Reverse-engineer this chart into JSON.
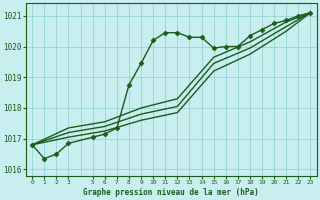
{
  "title": "Graphe pression niveau de la mer (hPa)",
  "bg_color": "#c8eef0",
  "grid_color": "#8ecfcf",
  "line_color": "#1a5c1a",
  "xlim": [
    -0.5,
    23.5
  ],
  "ylim": [
    1015.8,
    1021.4
  ],
  "yticks": [
    1016,
    1017,
    1018,
    1019,
    1020,
    1021
  ],
  "xticks": [
    0,
    1,
    2,
    3,
    5,
    6,
    7,
    8,
    9,
    10,
    11,
    12,
    13,
    14,
    15,
    16,
    17,
    18,
    19,
    20,
    21,
    22,
    23
  ],
  "series": [
    {
      "x": [
        0,
        1,
        2,
        3,
        5,
        6,
        7,
        8,
        9,
        10,
        11,
        12,
        13,
        14,
        15,
        16,
        17,
        18,
        19,
        20,
        21,
        22,
        23
      ],
      "y": [
        1016.8,
        1016.35,
        1016.5,
        1016.85,
        1017.05,
        1017.15,
        1017.35,
        1018.75,
        1019.45,
        1020.2,
        1020.45,
        1020.45,
        1020.3,
        1020.3,
        1019.95,
        1020.0,
        1020.0,
        1020.35,
        1020.55,
        1020.75,
        1020.85,
        1021.0,
        1021.1
      ],
      "marker": "D",
      "markersize": 2.5,
      "linewidth": 1.0
    },
    {
      "x": [
        0,
        3,
        6,
        9,
        12,
        15,
        18,
        21,
        23
      ],
      "y": [
        1016.8,
        1017.35,
        1017.55,
        1018.0,
        1018.3,
        1019.65,
        1020.15,
        1020.8,
        1021.1
      ],
      "marker": null,
      "linewidth": 1.0
    },
    {
      "x": [
        0,
        3,
        6,
        9,
        12,
        15,
        18,
        21,
        23
      ],
      "y": [
        1016.8,
        1017.2,
        1017.4,
        1017.8,
        1018.05,
        1019.45,
        1019.95,
        1020.65,
        1021.1
      ],
      "marker": null,
      "linewidth": 1.0
    },
    {
      "x": [
        0,
        3,
        6,
        9,
        12,
        15,
        18,
        21,
        23
      ],
      "y": [
        1016.8,
        1017.05,
        1017.25,
        1017.6,
        1017.85,
        1019.2,
        1019.75,
        1020.5,
        1021.1
      ],
      "marker": null,
      "linewidth": 1.0
    }
  ]
}
